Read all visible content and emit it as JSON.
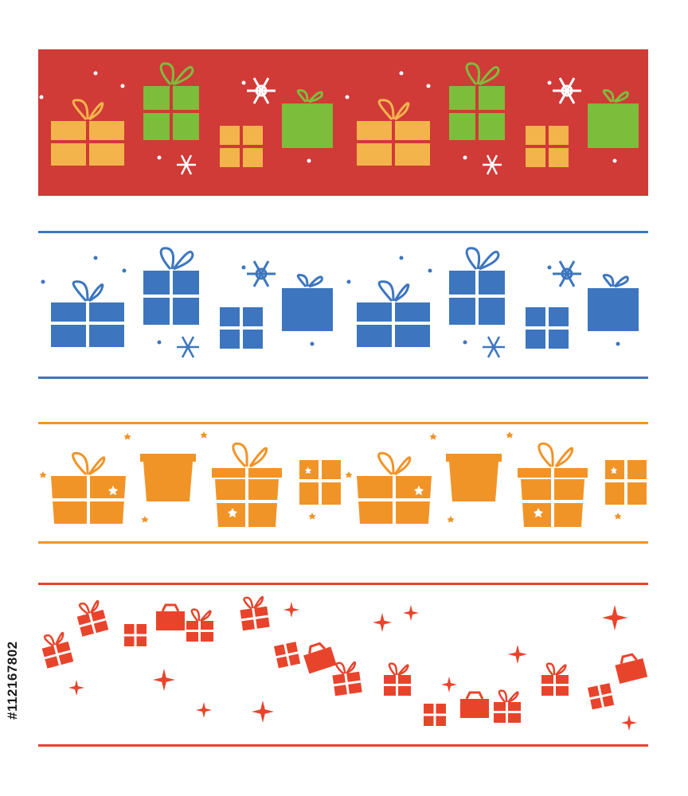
{
  "stock_id": "#112167802",
  "colors": {
    "red_band": "#d03a37",
    "green": "#7cbd3c",
    "yellow": "#f4b44c",
    "white": "#ffffff",
    "blue": "#3d76bf",
    "orange": "#f19428",
    "wave_red": "#e8442c"
  },
  "bands": [
    {
      "name": "red-band",
      "theme": "gift-boxes-snowflakes"
    },
    {
      "name": "blue-band",
      "theme": "gift-boxes-snowflakes"
    },
    {
      "name": "orange-band",
      "theme": "gift-boxes-stars"
    },
    {
      "name": "wave-band",
      "theme": "gift-boxes-wave-sparkles"
    }
  ]
}
